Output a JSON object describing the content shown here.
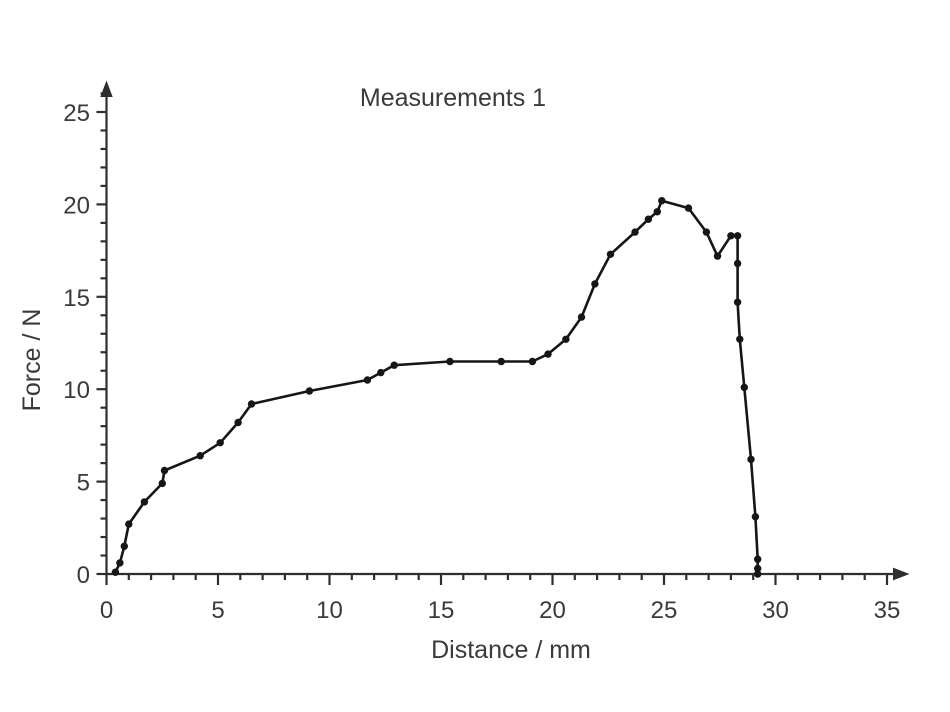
{
  "chart_data": {
    "type": "line",
    "title": "Measurements 1",
    "xlabel": "Distance / mm",
    "ylabel": "Force / N",
    "grid": false,
    "legend": "none",
    "marker": "filled-circle",
    "xlim": [
      0,
      36
    ],
    "ylim": [
      0,
      26.5
    ],
    "x_axis": {
      "major_ticks": [
        0,
        5,
        10,
        15,
        20,
        25,
        30,
        35
      ],
      "minor_step": 1,
      "minor_max": 35
    },
    "y_axis": {
      "major_ticks": [
        0,
        5,
        10,
        15,
        20,
        25
      ],
      "minor_step": 1,
      "minor_max": 26
    },
    "points": [
      [
        0.4,
        0.1
      ],
      [
        0.6,
        0.6
      ],
      [
        0.8,
        1.5
      ],
      [
        1.0,
        2.7
      ],
      [
        1.7,
        3.9
      ],
      [
        2.5,
        4.9
      ],
      [
        2.6,
        5.6
      ],
      [
        4.2,
        6.4
      ],
      [
        5.1,
        7.1
      ],
      [
        5.9,
        8.2
      ],
      [
        6.5,
        9.2
      ],
      [
        9.1,
        9.9
      ],
      [
        11.7,
        10.5
      ],
      [
        12.3,
        10.9
      ],
      [
        12.9,
        11.3
      ],
      [
        15.4,
        11.5
      ],
      [
        17.7,
        11.5
      ],
      [
        19.1,
        11.5
      ],
      [
        19.8,
        11.9
      ],
      [
        20.6,
        12.7
      ],
      [
        21.3,
        13.9
      ],
      [
        21.9,
        15.7
      ],
      [
        22.6,
        17.3
      ],
      [
        23.7,
        18.5
      ],
      [
        24.3,
        19.2
      ],
      [
        24.7,
        19.6
      ],
      [
        24.9,
        20.2
      ],
      [
        26.1,
        19.8
      ],
      [
        26.9,
        18.5
      ],
      [
        27.4,
        17.2
      ],
      [
        28.0,
        18.3
      ],
      [
        28.3,
        18.3
      ],
      [
        28.3,
        16.8
      ],
      [
        28.3,
        14.7
      ],
      [
        28.4,
        12.7
      ],
      [
        28.6,
        10.1
      ],
      [
        28.9,
        6.2
      ],
      [
        29.1,
        3.1
      ],
      [
        29.2,
        0.8
      ],
      [
        29.2,
        0.3
      ],
      [
        29.2,
        0.0
      ]
    ]
  },
  "colors": {
    "line": "#161616",
    "axis": "#2e2e2e",
    "text": "#3a3a3a",
    "background": "#ffffff"
  }
}
